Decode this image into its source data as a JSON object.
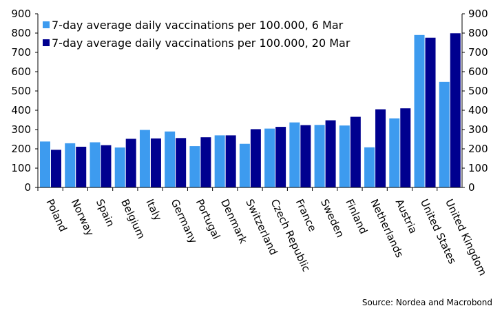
{
  "chart_data": {
    "type": "bar",
    "categories": [
      "Poland",
      "Norway",
      "Spain",
      "Belgium",
      "Italy",
      "Germany",
      "Portugal",
      "Denmark",
      "Switzerland",
      "Czech Republic",
      "France",
      "Sweden",
      "Finland",
      "Netherlands",
      "Austria",
      "United States",
      "United Kingdom"
    ],
    "series": [
      {
        "name": "7-day average daily vaccinations per 100.000, 6 Mar",
        "color": "#3d9bef",
        "values": [
          238,
          229,
          234,
          207,
          298,
          290,
          214,
          270,
          226,
          305,
          337,
          324,
          321,
          208,
          358,
          790,
          547
        ]
      },
      {
        "name": "7-day average daily vaccinations per 100.000, 20 Mar",
        "color": "#00008f",
        "values": [
          195,
          211,
          219,
          252,
          254,
          256,
          260,
          270,
          302,
          314,
          323,
          348,
          366,
          405,
          410,
          776,
          799
        ]
      }
    ],
    "ylim": [
      0,
      900
    ],
    "yticks": [
      0,
      100,
      200,
      300,
      400,
      500,
      600,
      700,
      800,
      900
    ],
    "y_axis": "both sides",
    "grid": false,
    "legend": "top-left",
    "source": "Source: Nordea and Macrobond"
  }
}
